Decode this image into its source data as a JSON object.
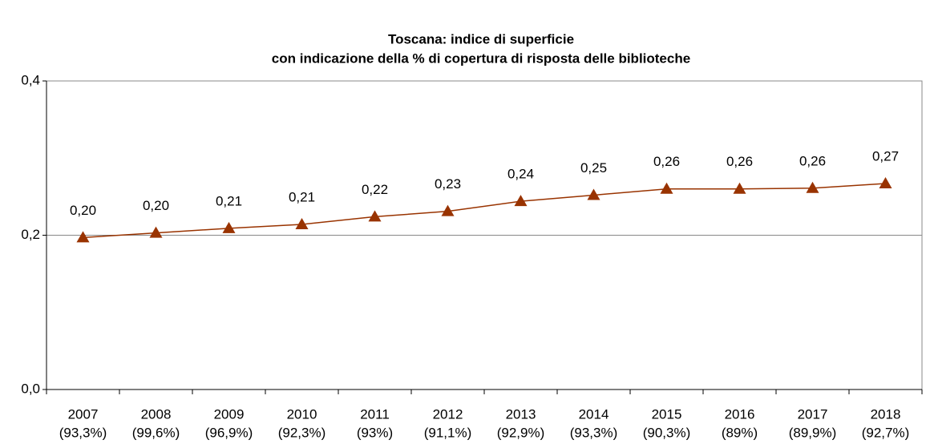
{
  "chart_data": {
    "type": "line",
    "title": [
      "Toscana: indice di superficie",
      "con indicazione della % di copertura di risposta delle biblioteche"
    ],
    "categories": [
      "2007",
      "2008",
      "2009",
      "2010",
      "2011",
      "2012",
      "2013",
      "2014",
      "2015",
      "2016",
      "2017",
      "2018"
    ],
    "coverage": [
      "(93,3%)",
      "(99,6%)",
      "(96,9%)",
      "(92,3%)",
      "(93%)",
      "(91,1%)",
      "(92,9%)",
      "(93,3%)",
      "(90,3%)",
      "(89%)",
      "(89,9%)",
      "(92,7%)"
    ],
    "series": [
      {
        "color": "#993300",
        "values": [
          0.197,
          0.203,
          0.209,
          0.214,
          0.224,
          0.231,
          0.244,
          0.252,
          0.26,
          0.26,
          0.261,
          0.267
        ],
        "value_labels": [
          "0,20",
          "0,20",
          "0,21",
          "0,21",
          "0,22",
          "0,23",
          "0,24",
          "0,25",
          "0,26",
          "0,26",
          "0,26",
          "0,27"
        ]
      }
    ],
    "ylim": [
      0,
      0.4
    ],
    "yticks": [
      {
        "value": 0,
        "label": "0,0"
      },
      {
        "value": 0.2,
        "label": "0,2"
      },
      {
        "value": 0.4,
        "label": "0,4"
      }
    ],
    "grid": true
  }
}
